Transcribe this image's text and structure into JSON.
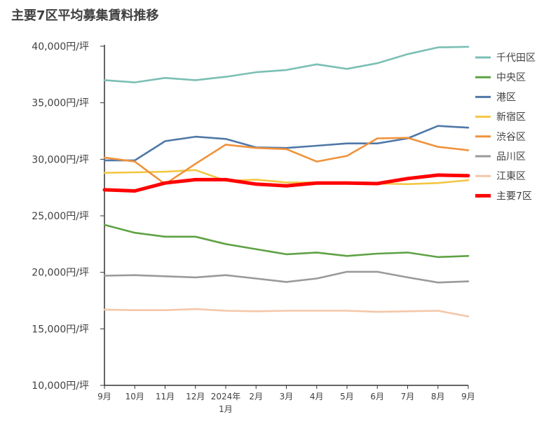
{
  "chart_data": {
    "type": "line",
    "title": "主要7区平均募集賃料推移",
    "xlabel": "",
    "ylabel": "",
    "categories": [
      [
        "9月"
      ],
      [
        "10月"
      ],
      [
        "11月"
      ],
      [
        "12月"
      ],
      [
        "2024年",
        "1月"
      ],
      [
        "2月"
      ],
      [
        "3月"
      ],
      [
        "4月"
      ],
      [
        "5月"
      ],
      [
        "6月"
      ],
      [
        "7月"
      ],
      [
        "8月"
      ],
      [
        "9月"
      ]
    ],
    "ylim": [
      10000,
      40000
    ],
    "yticks": [
      {
        "value": 40000,
        "label": "40,000円/坪"
      },
      {
        "value": 35000,
        "label": "35,000円/坪"
      },
      {
        "value": 30000,
        "label": "30,000円/坪"
      },
      {
        "value": 25000,
        "label": "25,000円/坪"
      },
      {
        "value": 20000,
        "label": "20,000円/坪"
      },
      {
        "value": 15000,
        "label": "15,000円/坪"
      },
      {
        "value": 10000,
        "label": "10,000円/坪"
      }
    ],
    "grid": false,
    "legend_position": "right",
    "series": [
      {
        "name": "千代田区",
        "color": "#7bbfb4",
        "values": [
          37000,
          36800,
          37200,
          37000,
          37300,
          37700,
          37900,
          38400,
          38000,
          38500,
          39300,
          39900,
          39950
        ]
      },
      {
        "name": "中央区",
        "color": "#5fa245",
        "values": [
          24200,
          23500,
          23150,
          23150,
          22500,
          22050,
          21600,
          21750,
          21450,
          21650,
          21750,
          21350,
          21450
        ]
      },
      {
        "name": "港区",
        "color": "#4f78a8",
        "values": [
          29900,
          29900,
          31600,
          32000,
          31800,
          31050,
          31000,
          31200,
          31400,
          31400,
          31850,
          32950,
          32800
        ]
      },
      {
        "name": "新宿区",
        "color": "#f2c744",
        "values": [
          28800,
          28850,
          28900,
          29050,
          28100,
          28200,
          27950,
          27950,
          27850,
          27850,
          27800,
          27900,
          28150
        ]
      },
      {
        "name": "渋谷区",
        "color": "#f0923b",
        "values": [
          30150,
          29800,
          27800,
          29600,
          31300,
          31000,
          30900,
          29800,
          30300,
          31850,
          31900,
          31100,
          30800
        ]
      },
      {
        "name": "品川区",
        "color": "#9a9a9a",
        "values": [
          19700,
          19750,
          19650,
          19550,
          19750,
          19450,
          19150,
          19450,
          20050,
          20050,
          19550,
          19100,
          19200
        ]
      },
      {
        "name": "江東区",
        "color": "#f4c7a8",
        "values": [
          16700,
          16650,
          16650,
          16750,
          16600,
          16550,
          16600,
          16600,
          16600,
          16500,
          16550,
          16600,
          16100
        ]
      },
      {
        "name": "主要7区",
        "color": "#ff0000",
        "values": [
          27300,
          27200,
          27900,
          28200,
          28200,
          27800,
          27650,
          27900,
          27900,
          27850,
          28300,
          28600,
          28550
        ],
        "bold": true
      }
    ]
  }
}
